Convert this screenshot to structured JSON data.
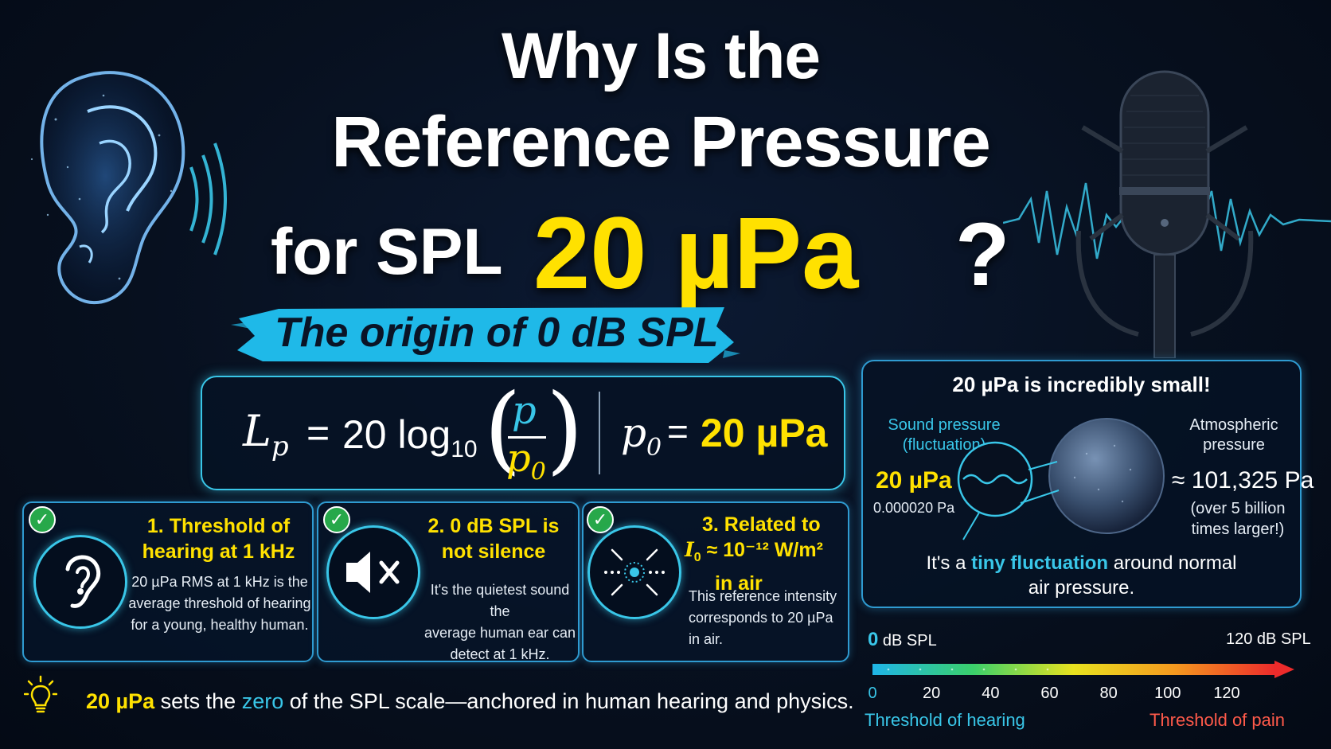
{
  "title": {
    "line1": "Why Is the",
    "line2": "Reference Pressure",
    "line3": "for SPL",
    "highlight": "20 µPa",
    "question_mark": "?"
  },
  "banner": {
    "text": "The origin of 0 dB SPL"
  },
  "formula": {
    "lp": "L",
    "lp_sub": "p",
    "equals": "=",
    "coef": "20 log",
    "log_base": "10",
    "numerator": "p",
    "denominator": "p",
    "denominator_sub": "0",
    "ref_symbol": "p",
    "ref_sub": "0",
    "ref_value": "20 µPa"
  },
  "cards": [
    {
      "check": "✓",
      "icon": "ear-icon",
      "title_line1": "1. Threshold of",
      "title_line2": "hearing at 1 kHz",
      "body": [
        "20 µPa RMS at 1 kHz is the",
        "average threshold of hearing",
        "for a young, healthy human."
      ]
    },
    {
      "check": "✓",
      "icon": "muted-speaker-icon",
      "title_line1": "2. 0 dB SPL is",
      "title_line2": "not silence",
      "body": [
        "It's the quietest sound the",
        "average human ear can",
        "detect at 1 kHz."
      ]
    },
    {
      "check": "✓",
      "icon": "intensity-point-icon",
      "title_line1": "3. Related to",
      "title_line2_sym": "I",
      "title_line2_sub": "0",
      "title_line2_rest": "≈ 10⁻¹² W/m²",
      "title_line3": "in air",
      "body": [
        "This reference intensity",
        "corresponds to 20 µPa",
        "in air."
      ]
    }
  ],
  "footer": {
    "icon": "lightbulb-icon",
    "part1": "20 µPa",
    "part2": " sets the ",
    "part3": "zero",
    "part4": " of the SPL scale—anchored in human hearing and physics."
  },
  "comparison": {
    "title": "20 µPa is incredibly small!",
    "left_label": [
      "Sound pressure",
      "(fluctuation)"
    ],
    "left_value": "20 µPa",
    "left_sub": "0.000020 Pa",
    "right_label": [
      "Atmospheric",
      "pressure"
    ],
    "right_value": "≈ 101,325 Pa",
    "right_sub": [
      "(over 5 billion",
      "times larger!)"
    ],
    "note_pre": "It's a ",
    "note_highlight": "tiny fluctuation",
    "note_post": " around normal",
    "note_line2": "air pressure."
  },
  "scale": {
    "left_value": "0",
    "left_unit": " dB SPL",
    "right_label": "120 dB SPL",
    "ticks": [
      "0",
      "20",
      "40",
      "60",
      "80",
      "100",
      "120"
    ],
    "left_caption": "Threshold of hearing",
    "right_caption": "Threshold of pain",
    "gradient_colors": [
      "#1fb5e8",
      "#3ad06b",
      "#e8e21f",
      "#f59a1f",
      "#ec2b2b"
    ]
  }
}
